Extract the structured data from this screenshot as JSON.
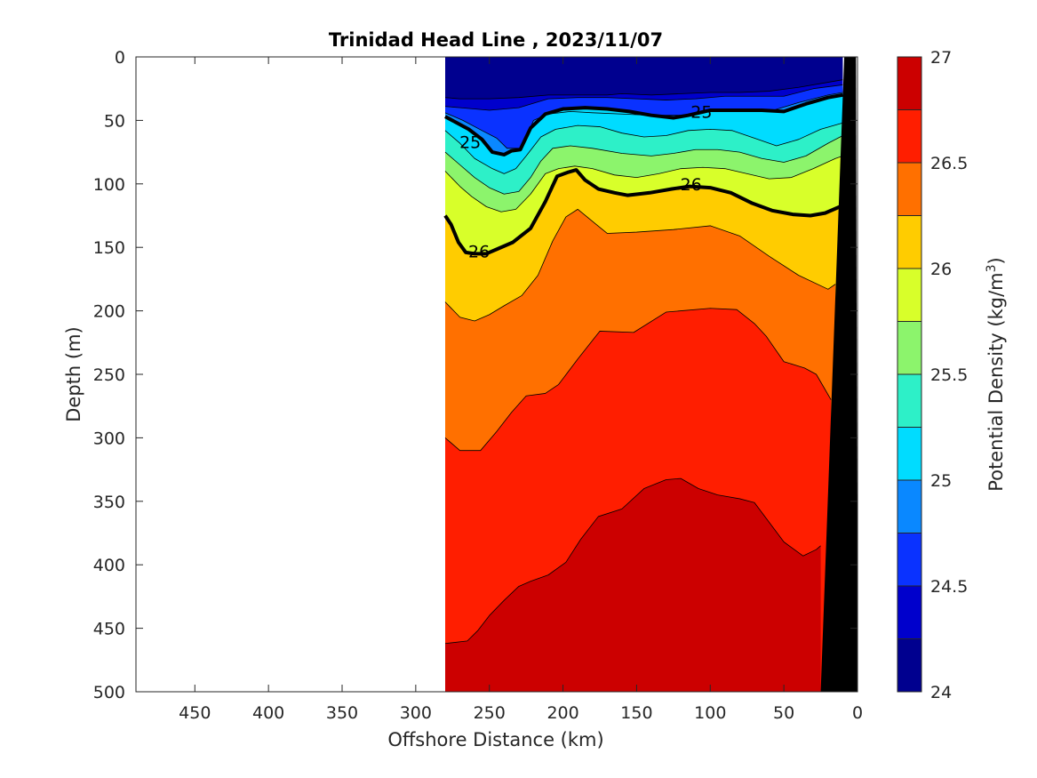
{
  "chart_data": {
    "type": "contourf",
    "title": "Trinidad Head Line , 2023/11/07",
    "xlabel": "Offshore Distance (km)",
    "ylabel": "Depth (m)",
    "xlim": [
      490,
      0
    ],
    "ylim": [
      0,
      500
    ],
    "x_reversed": true,
    "y_reversed": true,
    "xticks": [
      450,
      400,
      350,
      300,
      250,
      200,
      150,
      100,
      50,
      0
    ],
    "yticks": [
      0,
      50,
      100,
      150,
      200,
      250,
      300,
      350,
      400,
      450,
      500
    ],
    "colorbar": {
      "label_prefix": "Potential Density (kg/m",
      "label_superscript": "3",
      "label_suffix": ")",
      "range": [
        24,
        27
      ],
      "ticks": [
        24,
        24.5,
        25,
        25.5,
        26,
        26.5,
        27
      ],
      "levels": [
        24,
        24.25,
        24.5,
        24.75,
        25,
        25.25,
        25.5,
        25.75,
        26,
        26.25,
        26.5,
        26.75,
        27
      ],
      "colors": [
        "#00008f",
        "#0000cc",
        "#0a32ff",
        "#0a88ff",
        "#00dcff",
        "#2df0c8",
        "#8cf46c",
        "#d8ff2a",
        "#ffcc00",
        "#ff7000",
        "#ff1e00",
        "#cc0000"
      ]
    },
    "data_extent_x": [
      280,
      10
    ],
    "isopycnals": [
      {
        "level": "24.25",
        "x": [
          280,
          270,
          250,
          230,
          210,
          190,
          170,
          160,
          140,
          120,
          100,
          80,
          60,
          40,
          20,
          10
        ],
        "y": [
          32,
          33,
          33,
          32,
          30,
          30,
          30,
          29,
          30,
          29,
          28,
          28,
          27,
          24,
          20,
          18
        ]
      },
      {
        "level": "24.5",
        "x": [
          280,
          270,
          250,
          230,
          210,
          190,
          170,
          150,
          130,
          110,
          90,
          70,
          50,
          30,
          10
        ],
        "y": [
          39,
          40,
          42,
          40,
          33,
          32,
          32,
          33,
          34,
          33,
          31,
          31,
          31,
          25,
          22
        ]
      },
      {
        "level": "24.75",
        "x": [
          280,
          268,
          255,
          245,
          238,
          228,
          220,
          210,
          195,
          180,
          160,
          140,
          120,
          100,
          80,
          60,
          40,
          20,
          10
        ],
        "y": [
          44,
          50,
          58,
          64,
          72,
          72,
          50,
          45,
          43,
          44,
          45,
          46,
          46,
          43,
          42,
          43,
          36,
          30,
          28
        ]
      },
      {
        "level": "25",
        "labels": [
          {
            "x": 263,
            "y": 67,
            "text": "25"
          },
          {
            "x": 106,
            "y": 43,
            "text": "25"
          }
        ],
        "x": [
          280,
          272,
          264,
          255,
          248,
          240,
          235,
          229,
          222,
          212,
          200,
          185,
          170,
          155,
          140,
          125,
          115,
          100,
          85,
          65,
          50,
          35,
          20,
          10
        ],
        "y": [
          47,
          52,
          57,
          65,
          75,
          77,
          74,
          73,
          56,
          45,
          41,
          40,
          41,
          43,
          46,
          48,
          46,
          42,
          42,
          42,
          43,
          37,
          32,
          30
        ]
      },
      {
        "level": "25.25",
        "x": [
          280,
          270,
          260,
          248,
          240,
          232,
          225,
          215,
          205,
          190,
          175,
          160,
          145,
          130,
          115,
          100,
          85,
          70,
          55,
          40,
          25,
          10
        ],
        "y": [
          58,
          68,
          80,
          88,
          92,
          88,
          78,
          63,
          57,
          54,
          55,
          60,
          63,
          62,
          58,
          57,
          58,
          64,
          70,
          65,
          57,
          52
        ]
      },
      {
        "level": "25.5",
        "x": [
          280,
          270,
          260,
          250,
          240,
          230,
          222,
          215,
          207,
          195,
          180,
          160,
          140,
          125,
          110,
          95,
          80,
          65,
          50,
          35,
          20,
          10
        ],
        "y": [
          75,
          85,
          95,
          103,
          108,
          106,
          95,
          82,
          72,
          70,
          72,
          76,
          78,
          76,
          73,
          73,
          75,
          80,
          83,
          78,
          68,
          62
        ]
      },
      {
        "level": "25.75",
        "x": [
          280,
          270,
          262,
          252,
          242,
          232,
          222,
          212,
          203,
          192,
          180,
          165,
          150,
          135,
          120,
          105,
          90,
          75,
          60,
          45,
          30,
          15,
          10
        ],
        "y": [
          90,
          102,
          110,
          118,
          122,
          120,
          108,
          92,
          88,
          86,
          88,
          93,
          95,
          92,
          88,
          87,
          88,
          92,
          96,
          95,
          88,
          80,
          78
        ]
      },
      {
        "level": "26",
        "labels": [
          {
            "x": 257,
            "y": 153,
            "text": "26"
          },
          {
            "x": 113,
            "y": 100,
            "text": "26"
          }
        ],
        "x": [
          280,
          276,
          271,
          266,
          260,
          252,
          244,
          234,
          222,
          212,
          204,
          197,
          191,
          185,
          176,
          165,
          156,
          141,
          126,
          114,
          100,
          86,
          72,
          58,
          44,
          32,
          22,
          12
        ],
        "y": [
          125,
          132,
          146,
          154,
          155,
          155,
          151,
          146,
          135,
          114,
          94,
          91,
          89,
          97,
          104,
          107,
          109,
          107,
          104,
          102,
          103,
          107,
          115,
          121,
          124,
          125,
          123,
          118
        ]
      },
      {
        "level": "26.25",
        "x": [
          280,
          270,
          260,
          250,
          240,
          228,
          217,
          207,
          198,
          190,
          170,
          150,
          125,
          100,
          80,
          60,
          40,
          20,
          15
        ],
        "y": [
          193,
          205,
          208,
          203,
          196,
          188,
          172,
          145,
          126,
          120,
          139,
          138,
          136,
          133,
          141,
          157,
          172,
          183,
          179
        ]
      },
      {
        "level": "26.5",
        "x": [
          280,
          270,
          256,
          245,
          235,
          225,
          212,
          203,
          190,
          175,
          152,
          130,
          100,
          82,
          70,
          62,
          50,
          36,
          28,
          22,
          18
        ],
        "y": [
          300,
          310,
          310,
          295,
          280,
          267,
          265,
          258,
          238,
          216,
          217,
          201,
          198,
          199,
          210,
          220,
          240,
          245,
          250,
          262,
          270
        ]
      },
      {
        "level": "26.75",
        "x": [
          280,
          265,
          258,
          250,
          240,
          230,
          222,
          210,
          198,
          188,
          176,
          160,
          145,
          130,
          120,
          108,
          95,
          80,
          70,
          50,
          37,
          28,
          25
        ],
        "y": [
          462,
          460,
          452,
          440,
          428,
          417,
          413,
          408,
          398,
          380,
          362,
          356,
          340,
          333,
          332,
          340,
          345,
          348,
          351,
          382,
          393,
          388,
          385
        ]
      }
    ],
    "bathymetry": {
      "x": [
        1,
        9,
        25,
        0
      ],
      "y": [
        0,
        0,
        500,
        500
      ]
    }
  }
}
